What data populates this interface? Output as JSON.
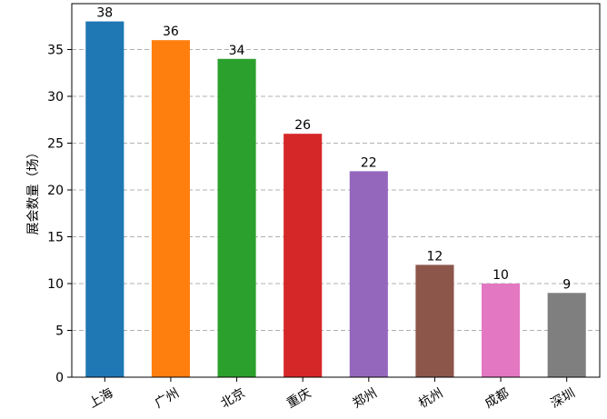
{
  "chart_data": {
    "type": "bar",
    "title": "",
    "xlabel": "",
    "ylabel": "展会数量（场）",
    "categories": [
      "上海",
      "广州",
      "北京",
      "重庆",
      "郑州",
      "杭州",
      "成都",
      "深圳"
    ],
    "values": [
      38,
      36,
      34,
      26,
      22,
      12,
      10,
      9
    ],
    "colors": [
      "#1f77b4",
      "#ff7f0e",
      "#2ca02c",
      "#d62728",
      "#9467bd",
      "#8c564b",
      "#e377c2",
      "#7f7f7f"
    ],
    "ylim": [
      0,
      39.9
    ],
    "yticks": [
      0,
      5,
      10,
      15,
      20,
      25,
      30,
      35
    ],
    "grid": "y-dashed",
    "legend": "none"
  }
}
